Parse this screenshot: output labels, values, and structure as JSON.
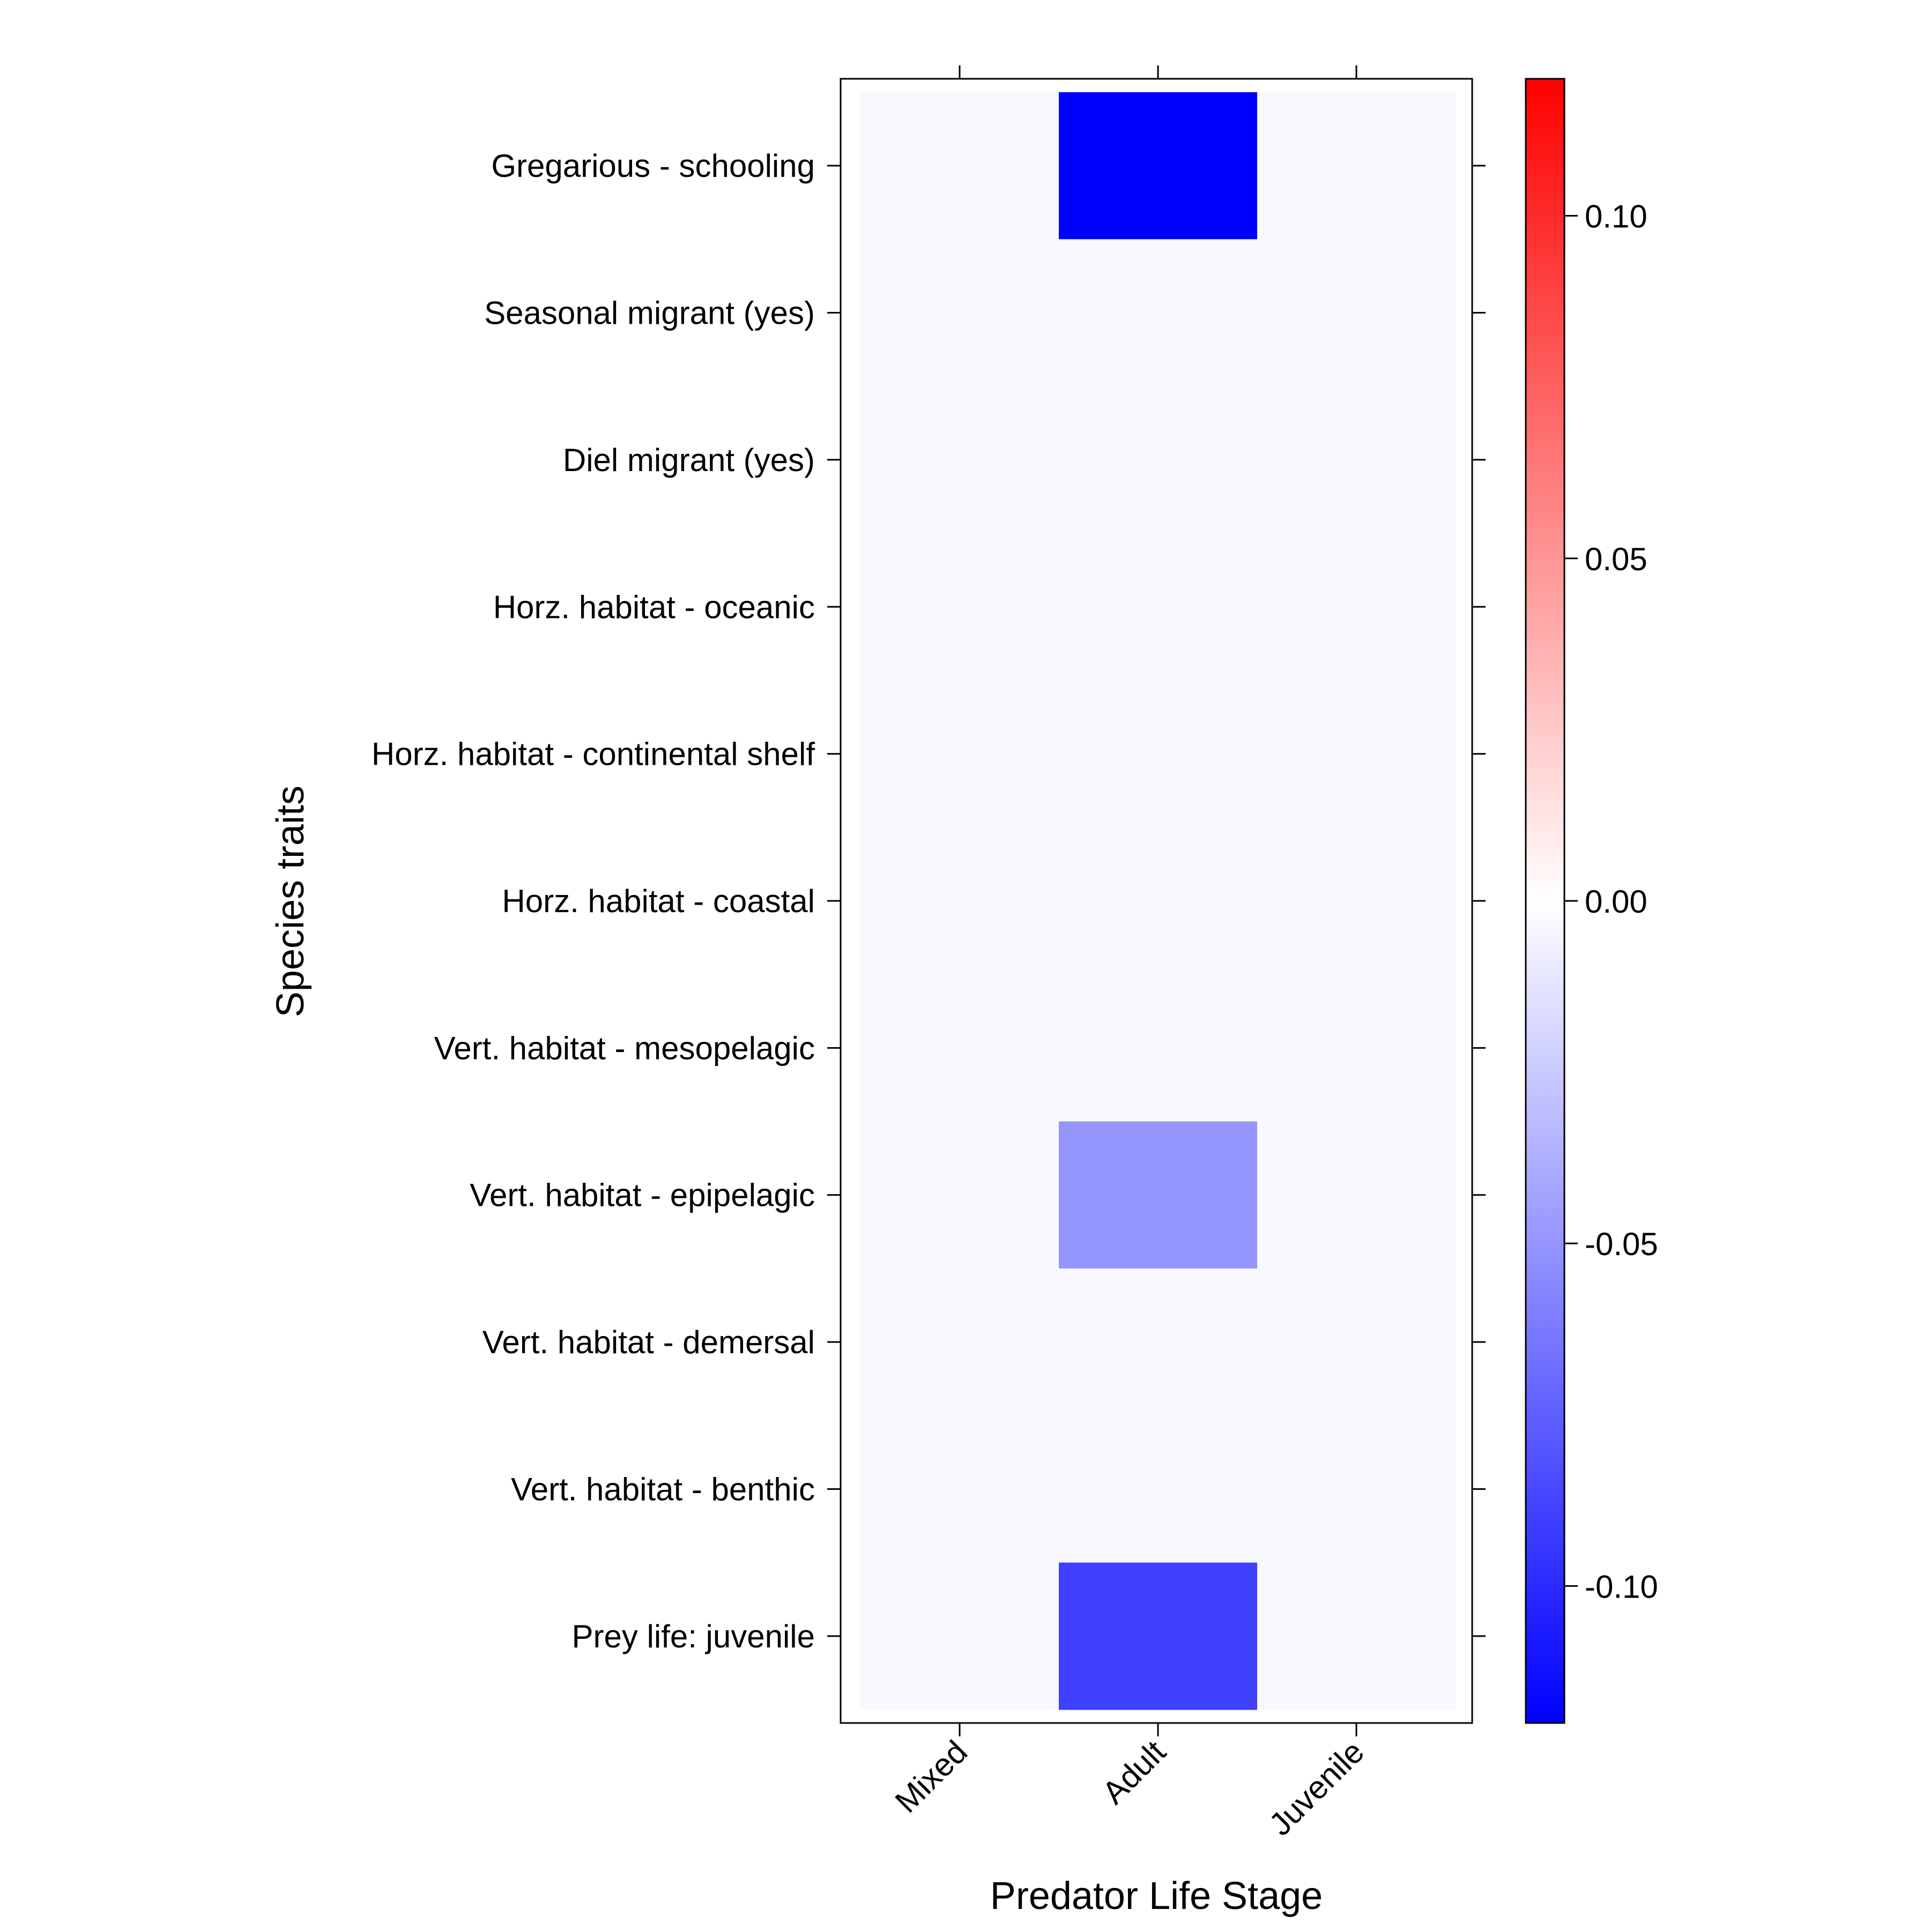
{
  "chart_data": {
    "type": "heatmap",
    "title": "",
    "xlabel": "Predator Life Stage",
    "ylabel": "Species traits",
    "x_categories": [
      "Mixed",
      "Adult",
      "Juvenile"
    ],
    "y_categories": [
      "Gregarious - schooling",
      "Seasonal migrant (yes)",
      "Diel migrant (yes)",
      "Horz. habitat - oceanic",
      "Horz. habitat - continental shelf",
      "Horz. habitat - coastal",
      "Vert. habitat - mesopelagic",
      "Vert. habitat - epipelagic",
      "Vert. habitat - demersal",
      "Vert. habitat - benthic",
      "Prey life: juvenile"
    ],
    "values": [
      [
        0,
        -0.12,
        0
      ],
      [
        0,
        0,
        0
      ],
      [
        0,
        0,
        0
      ],
      [
        0,
        0,
        0
      ],
      [
        0,
        0,
        0
      ],
      [
        0,
        0,
        0
      ],
      [
        0,
        0,
        0
      ],
      [
        0,
        -0.05,
        0
      ],
      [
        0,
        0,
        0
      ],
      [
        0,
        0,
        0
      ],
      [
        0,
        -0.09,
        0
      ]
    ],
    "colorbar": {
      "range": [
        -0.12,
        0.12
      ],
      "ticks": [
        0.1,
        0.05,
        0.0,
        -0.05,
        -0.1
      ],
      "tick_labels": [
        "0.10",
        "0.05",
        "0.00",
        "-0.05",
        "-0.10"
      ],
      "low_color": "#0000ff",
      "mid_color": "#ffffff",
      "high_color": "#ff0000",
      "zero_cell_color": "#f8f8ff"
    },
    "grid": false,
    "legend": "colorbar-right"
  }
}
